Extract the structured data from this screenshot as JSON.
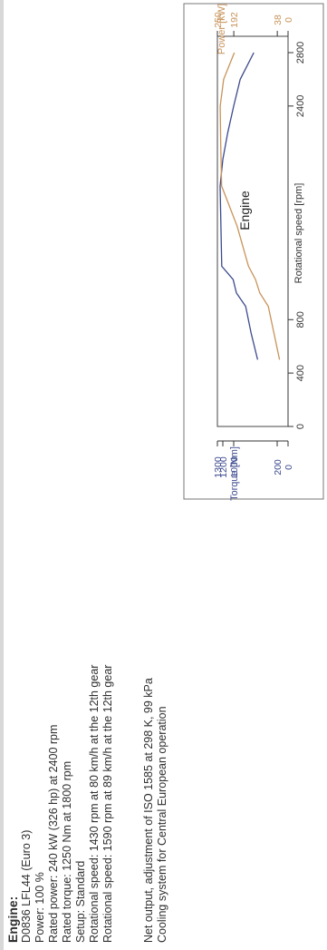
{
  "spec": {
    "heading": "Engine:",
    "lines": [
      "D0836 LFL44 (Euro 3)",
      "Power: 100 %",
      "Rated power: 240 kW  (326 hp) at 2400 rpm",
      "Rated torque: 1250 Nm at 1800 rpm",
      "Setup: Standard",
      "Rotational speed: 1430 rpm at 80 km/h at the 12th gear",
      "Rotational speed: 1590 rpm at 89 km/h at the 12th gear"
    ],
    "notes": [
      "Net output, adjustment of ISO 1585 at 298 K, 99 kPa",
      "Cooling system for Central European operation"
    ]
  },
  "chart_data": {
    "type": "line",
    "title": "Engine",
    "xlabel": "Rotational speed [rpm]",
    "ylabel_left": "Torque [Nm]",
    "ylabel_right": "Power [kW]",
    "xlim": [
      0,
      2800
    ],
    "ylim_torque": [
      0,
      1300
    ],
    "ylim_power": [
      0,
      250
    ],
    "x_ticks": [
      "0",
      "400",
      "800",
      "2400",
      "2800"
    ],
    "torque_ticks": [
      "0",
      "200",
      "1000",
      "1200",
      "1300"
    ],
    "power_ticks": [
      "0",
      "38",
      "192",
      "250"
    ],
    "colors": {
      "torque": "#3c4a8e",
      "power": "#c8935a",
      "axis": "#333333"
    },
    "series": [
      {
        "name": "Torque [Nm]",
        "x": [
          500,
          700,
          900,
          1000,
          1100,
          1200,
          1800,
          2000,
          2200,
          2400,
          2600,
          2800
        ],
        "y": [
          560,
          680,
          780,
          950,
          1010,
          1220,
          1250,
          1200,
          1110,
          1000,
          880,
          630
        ]
      },
      {
        "name": "Power [kW]",
        "x": [
          500,
          700,
          900,
          1000,
          1100,
          1200,
          1500,
          1800,
          2100,
          2400,
          2600,
          2800
        ],
        "y": [
          30,
          50,
          70,
          100,
          115,
          140,
          180,
          235,
          238,
          240,
          228,
          190
        ]
      }
    ]
  }
}
